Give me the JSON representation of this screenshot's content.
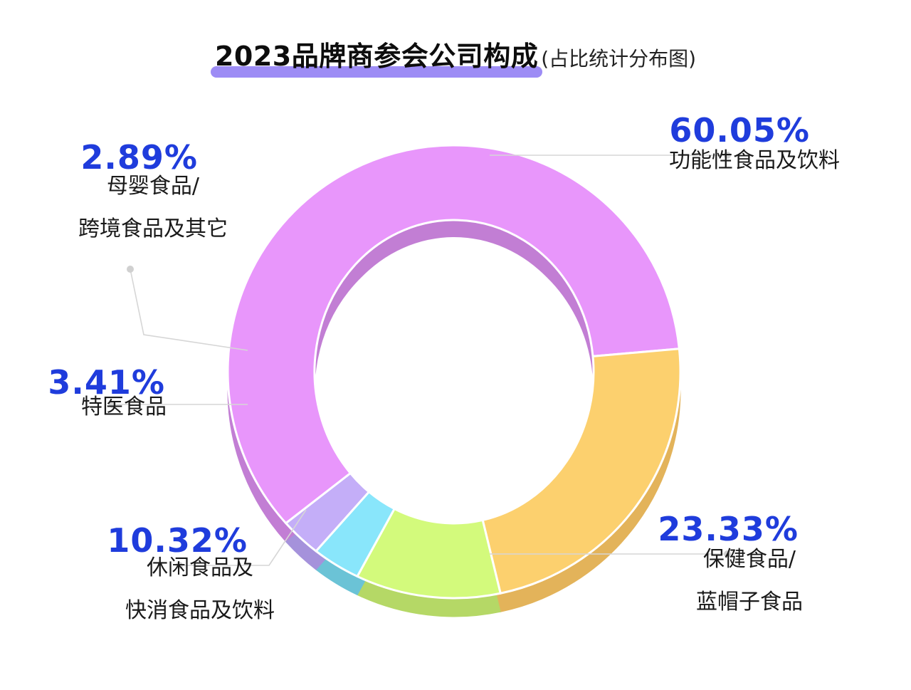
{
  "chart_data": {
    "type": "pie",
    "title": "2023品牌商参会公司构成",
    "subtitle": "(占比统计分布图)",
    "slices": [
      {
        "label_lines": [
          "功能性食品及饮料"
        ],
        "value": 60.05,
        "value_text": "60.05%",
        "color": "#e896fb",
        "side_color": "#c27ed4"
      },
      {
        "label_lines": [
          "保健食品/",
          "蓝帽子食品"
        ],
        "value": 23.33,
        "value_text": "23.33%",
        "color": "#fcd06e",
        "side_color": "#e3b35a"
      },
      {
        "label_lines": [
          "休闲食品及",
          "快消食品及饮料"
        ],
        "value": 10.32,
        "value_text": "10.32%",
        "color": "#d3fa7c",
        "side_color": "#b5d866"
      },
      {
        "label_lines": [
          "特医食品"
        ],
        "value": 3.41,
        "value_text": "3.41%",
        "color": "#89e6fb",
        "side_color": "#6bc3d6"
      },
      {
        "label_lines": [
          "母婴食品/",
          "跨境食品及其它"
        ],
        "value": 2.89,
        "value_text": "2.89%",
        "color": "#c4aef8",
        "side_color": "#a592db"
      }
    ],
    "legend": "none",
    "donut": true
  }
}
